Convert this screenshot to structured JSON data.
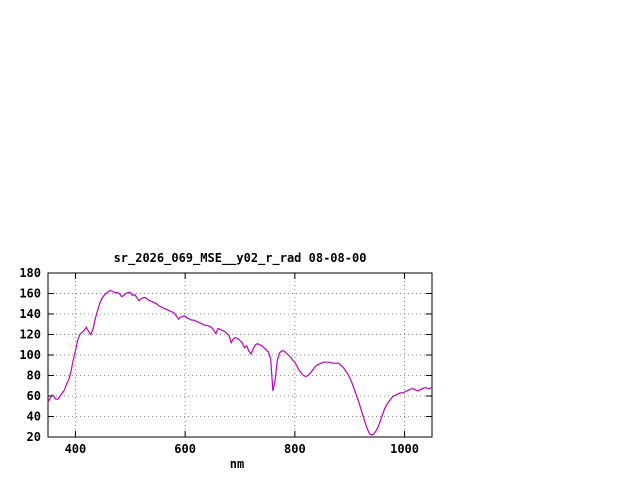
{
  "chart_data": {
    "type": "line",
    "title": "sr_2026_069_MSE__y02_r_rad 08-08-00",
    "xlabel": "nm",
    "ylabel": "",
    "xlim": [
      350,
      1050
    ],
    "ylim": [
      20,
      180
    ],
    "xticks": [
      400,
      600,
      800,
      1000
    ],
    "yticks": [
      20,
      40,
      60,
      80,
      100,
      120,
      140,
      160,
      180
    ],
    "grid": true,
    "legend": "none",
    "line_color": "#c000c0",
    "series": [
      {
        "points": [
          [
            350,
            54
          ],
          [
            354,
            58
          ],
          [
            357,
            61
          ],
          [
            360,
            60
          ],
          [
            364,
            57
          ],
          [
            368,
            57
          ],
          [
            372,
            60
          ],
          [
            376,
            63
          ],
          [
            380,
            66
          ],
          [
            384,
            72
          ],
          [
            388,
            76
          ],
          [
            392,
            84
          ],
          [
            396,
            95
          ],
          [
            400,
            104
          ],
          [
            404,
            114
          ],
          [
            408,
            120
          ],
          [
            412,
            122
          ],
          [
            416,
            124
          ],
          [
            420,
            127
          ],
          [
            424,
            123
          ],
          [
            428,
            120
          ],
          [
            432,
            125
          ],
          [
            436,
            135
          ],
          [
            440,
            143
          ],
          [
            444,
            150
          ],
          [
            448,
            155
          ],
          [
            452,
            158
          ],
          [
            456,
            160
          ],
          [
            460,
            162
          ],
          [
            464,
            163
          ],
          [
            468,
            162
          ],
          [
            472,
            161
          ],
          [
            476,
            161
          ],
          [
            480,
            160
          ],
          [
            484,
            157
          ],
          [
            488,
            158
          ],
          [
            492,
            160
          ],
          [
            496,
            161
          ],
          [
            500,
            161
          ],
          [
            504,
            158
          ],
          [
            508,
            159
          ],
          [
            512,
            156
          ],
          [
            516,
            153
          ],
          [
            520,
            155
          ],
          [
            524,
            156
          ],
          [
            528,
            156
          ],
          [
            532,
            154
          ],
          [
            536,
            153
          ],
          [
            540,
            152
          ],
          [
            544,
            151
          ],
          [
            548,
            150
          ],
          [
            552,
            148
          ],
          [
            556,
            147
          ],
          [
            560,
            146
          ],
          [
            564,
            145
          ],
          [
            568,
            144
          ],
          [
            572,
            143
          ],
          [
            576,
            142
          ],
          [
            580,
            141
          ],
          [
            584,
            138
          ],
          [
            588,
            135
          ],
          [
            592,
            137
          ],
          [
            596,
            138
          ],
          [
            600,
            138
          ],
          [
            604,
            136
          ],
          [
            608,
            135
          ],
          [
            612,
            134
          ],
          [
            616,
            134
          ],
          [
            620,
            133
          ],
          [
            624,
            132
          ],
          [
            628,
            131
          ],
          [
            632,
            130
          ],
          [
            636,
            129
          ],
          [
            640,
            129
          ],
          [
            644,
            128
          ],
          [
            648,
            127
          ],
          [
            652,
            124
          ],
          [
            656,
            121
          ],
          [
            660,
            126
          ],
          [
            664,
            125
          ],
          [
            668,
            124
          ],
          [
            672,
            123
          ],
          [
            676,
            121
          ],
          [
            680,
            119
          ],
          [
            684,
            112
          ],
          [
            688,
            116
          ],
          [
            692,
            117
          ],
          [
            696,
            116
          ],
          [
            700,
            114
          ],
          [
            704,
            112
          ],
          [
            708,
            107
          ],
          [
            712,
            109
          ],
          [
            716,
            104
          ],
          [
            720,
            101
          ],
          [
            724,
            106
          ],
          [
            728,
            110
          ],
          [
            732,
            111
          ],
          [
            736,
            110
          ],
          [
            740,
            109
          ],
          [
            744,
            107
          ],
          [
            748,
            105
          ],
          [
            752,
            103
          ],
          [
            756,
            96
          ],
          [
            760,
            65
          ],
          [
            764,
            75
          ],
          [
            768,
            95
          ],
          [
            772,
            102
          ],
          [
            776,
            104
          ],
          [
            780,
            104
          ],
          [
            784,
            102
          ],
          [
            788,
            100
          ],
          [
            792,
            98
          ],
          [
            796,
            95
          ],
          [
            800,
            93
          ],
          [
            804,
            89
          ],
          [
            808,
            85
          ],
          [
            812,
            82
          ],
          [
            816,
            80
          ],
          [
            820,
            79
          ],
          [
            824,
            80
          ],
          [
            828,
            82
          ],
          [
            832,
            85
          ],
          [
            836,
            88
          ],
          [
            840,
            90
          ],
          [
            844,
            91
          ],
          [
            848,
            92
          ],
          [
            852,
            93
          ],
          [
            856,
            93
          ],
          [
            860,
            93
          ],
          [
            864,
            93
          ],
          [
            868,
            92
          ],
          [
            872,
            92
          ],
          [
            876,
            92
          ],
          [
            880,
            92
          ],
          [
            884,
            90
          ],
          [
            888,
            88
          ],
          [
            892,
            85
          ],
          [
            896,
            82
          ],
          [
            900,
            78
          ],
          [
            904,
            73
          ],
          [
            908,
            67
          ],
          [
            912,
            61
          ],
          [
            916,
            55
          ],
          [
            920,
            48
          ],
          [
            924,
            41
          ],
          [
            928,
            34
          ],
          [
            932,
            28
          ],
          [
            936,
            23
          ],
          [
            940,
            22
          ],
          [
            944,
            23
          ],
          [
            948,
            26
          ],
          [
            952,
            30
          ],
          [
            956,
            36
          ],
          [
            960,
            42
          ],
          [
            964,
            48
          ],
          [
            968,
            52
          ],
          [
            972,
            55
          ],
          [
            976,
            58
          ],
          [
            980,
            60
          ],
          [
            984,
            61
          ],
          [
            988,
            62
          ],
          [
            992,
            63
          ],
          [
            996,
            63
          ],
          [
            1000,
            64
          ],
          [
            1004,
            65
          ],
          [
            1008,
            66
          ],
          [
            1012,
            67
          ],
          [
            1016,
            67
          ],
          [
            1020,
            66
          ],
          [
            1024,
            65
          ],
          [
            1028,
            66
          ],
          [
            1032,
            67
          ],
          [
            1036,
            68
          ],
          [
            1040,
            68
          ],
          [
            1044,
            67
          ],
          [
            1048,
            68
          ],
          [
            1050,
            68
          ]
        ]
      }
    ]
  }
}
